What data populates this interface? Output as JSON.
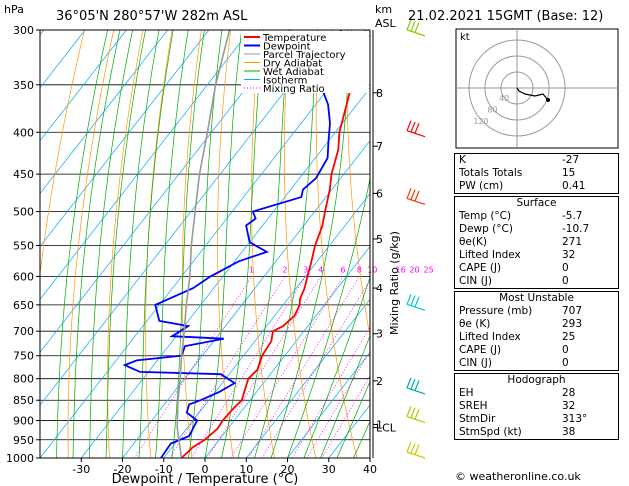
{
  "header": {
    "hpa_label": "hPa",
    "location": "36°05'N  280°57'W  282m  ASL",
    "km_label": "km",
    "asl_label": "ASL",
    "datetime": "21.02.2021  15GMT  (Base: 12)"
  },
  "legend": [
    {
      "label": "Temperature",
      "color": "#ff0000"
    },
    {
      "label": "Dewpoint",
      "color": "#0000ff"
    },
    {
      "label": "Parcel Trajectory",
      "color": "#999999"
    },
    {
      "label": "Dry Adiabat",
      "color": "#ff9900"
    },
    {
      "label": "Wet Adiabat",
      "color": "#00aa00"
    },
    {
      "label": "Isotherm",
      "color": "#00aaff"
    },
    {
      "label": "Mixing Ratio",
      "color": "#ff00ff"
    }
  ],
  "chart_data": {
    "type": "line",
    "subtype": "skew-T log-P",
    "xlabel": "Dewpoint / Temperature (°C)",
    "ylabel": "hPa",
    "right_label": "Mixing Ratio (g/kg)",
    "x_ticks": [
      -30,
      -20,
      -10,
      0,
      10,
      20,
      30,
      40
    ],
    "x_range": [
      -40,
      40
    ],
    "pressure_levels": [
      300,
      350,
      400,
      450,
      500,
      550,
      600,
      650,
      700,
      750,
      800,
      850,
      900,
      950,
      1000
    ],
    "km_ticks": [
      {
        "label": "8",
        "p": 358
      },
      {
        "label": "7",
        "p": 416
      },
      {
        "label": "6",
        "p": 475
      },
      {
        "label": "5",
        "p": 540
      },
      {
        "label": "4",
        "p": 620
      },
      {
        "label": "3",
        "p": 705
      },
      {
        "label": "2",
        "p": 805
      },
      {
        "label": "1",
        "p": 910
      },
      {
        "label": "LCL",
        "p": 918
      }
    ],
    "mixing_ratio_labels": [
      "1",
      "2",
      "3",
      "4",
      "6",
      "8",
      "10",
      "16",
      "20",
      "25"
    ],
    "mixing_ratio_values": [
      1,
      2,
      3,
      4,
      6,
      8,
      10,
      16,
      20,
      25
    ],
    "series": [
      {
        "name": "Temperature",
        "color": "#ff0000",
        "points": [
          [
            1000,
            -5.7
          ],
          [
            970,
            -5
          ],
          [
            950,
            -3.5
          ],
          [
            920,
            -2.5
          ],
          [
            900,
            -2.8
          ],
          [
            870,
            -2.5
          ],
          [
            850,
            -2
          ],
          [
            830,
            -3
          ],
          [
            800,
            -4.5
          ],
          [
            780,
            -4
          ],
          [
            750,
            -5.5
          ],
          [
            720,
            -6
          ],
          [
            700,
            -7.5
          ],
          [
            690,
            -6
          ],
          [
            670,
            -5.2
          ],
          [
            650,
            -6
          ],
          [
            640,
            -7
          ],
          [
            620,
            -8
          ],
          [
            600,
            -9.5
          ],
          [
            580,
            -11
          ],
          [
            550,
            -13.5
          ],
          [
            520,
            -15.5
          ],
          [
            500,
            -17.5
          ],
          [
            470,
            -20.5
          ],
          [
            450,
            -23
          ],
          [
            420,
            -26
          ],
          [
            400,
            -29
          ],
          [
            370,
            -32.5
          ],
          [
            350,
            -35
          ],
          [
            330,
            -38
          ],
          [
            300,
            -42
          ]
        ]
      },
      {
        "name": "Dewpoint",
        "color": "#0000ff",
        "points": [
          [
            1000,
            -10.7
          ],
          [
            960,
            -11
          ],
          [
            940,
            -8
          ],
          [
            920,
            -8.5
          ],
          [
            900,
            -9
          ],
          [
            880,
            -13
          ],
          [
            860,
            -14
          ],
          [
            850,
            -12
          ],
          [
            830,
            -9
          ],
          [
            810,
            -7
          ],
          [
            790,
            -12
          ],
          [
            785,
            -32
          ],
          [
            770,
            -37
          ],
          [
            760,
            -35
          ],
          [
            750,
            -25
          ],
          [
            730,
            -26
          ],
          [
            715,
            -18
          ],
          [
            710,
            -31
          ],
          [
            690,
            -29
          ],
          [
            680,
            -37
          ],
          [
            650,
            -41
          ],
          [
            620,
            -35
          ],
          [
            600,
            -33
          ],
          [
            575,
            -29
          ],
          [
            560,
            -24
          ],
          [
            545,
            -30
          ],
          [
            520,
            -34
          ],
          [
            510,
            -33
          ],
          [
            500,
            -35
          ],
          [
            480,
            -26
          ],
          [
            470,
            -27
          ],
          [
            455,
            -26
          ],
          [
            430,
            -27
          ],
          [
            410,
            -30
          ],
          [
            390,
            -33
          ],
          [
            370,
            -37
          ],
          [
            345,
            -44
          ],
          [
            320,
            -43
          ],
          [
            300,
            -48
          ]
        ]
      },
      {
        "name": "Parcel Trajectory",
        "color": "#999999",
        "points": [
          [
            1000,
            -5.7
          ],
          [
            918,
            -12.5
          ],
          [
            850,
            -17.5
          ],
          [
            800,
            -21
          ],
          [
            750,
            -25
          ],
          [
            700,
            -29
          ],
          [
            650,
            -33.5
          ],
          [
            600,
            -38
          ],
          [
            550,
            -43.5
          ],
          [
            500,
            -49
          ],
          [
            450,
            -55
          ],
          [
            400,
            -61
          ],
          [
            350,
            -68
          ],
          [
            300,
            -75
          ]
        ]
      }
    ]
  },
  "hodograph": {
    "label": "kt",
    "ring_labels": [
      "40",
      "80",
      "120"
    ],
    "points": [
      [
        0,
        0
      ],
      [
        2,
        -3
      ],
      [
        8,
        -6
      ],
      [
        18,
        -8
      ],
      [
        26,
        -6
      ],
      [
        31,
        -12
      ]
    ]
  },
  "indices_box": {
    "rows": [
      {
        "label": "K",
        "value": "-27"
      },
      {
        "label": "Totals Totals",
        "value": "15"
      },
      {
        "label": "PW (cm)",
        "value": "0.41"
      }
    ]
  },
  "surface_box": {
    "title": "Surface",
    "rows": [
      {
        "label": "Temp (°C)",
        "value": "-5.7"
      },
      {
        "label": "Dewp (°C)",
        "value": "-10.7"
      },
      {
        "label": "θe(K)",
        "value": "271"
      },
      {
        "label": "Lifted Index",
        "value": "32"
      },
      {
        "label": "CAPE (J)",
        "value": "0"
      },
      {
        "label": "CIN (J)",
        "value": "0"
      }
    ]
  },
  "unstable_box": {
    "title": "Most Unstable",
    "rows": [
      {
        "label": "Pressure (mb)",
        "value": "707"
      },
      {
        "label": "θe (K)",
        "value": "293"
      },
      {
        "label": "Lifted Index",
        "value": "25"
      },
      {
        "label": "CAPE (J)",
        "value": "0"
      },
      {
        "label": "CIN (J)",
        "value": "0"
      }
    ]
  },
  "hodograph_box": {
    "title": "Hodograph",
    "rows": [
      {
        "label": "EH",
        "value": "28"
      },
      {
        "label": "SREH",
        "value": "32"
      },
      {
        "label": "StmDir",
        "value": "313°"
      },
      {
        "label": "StmSpd (kt)",
        "value": "38"
      }
    ]
  },
  "footer": "© weatheronline.co.uk"
}
